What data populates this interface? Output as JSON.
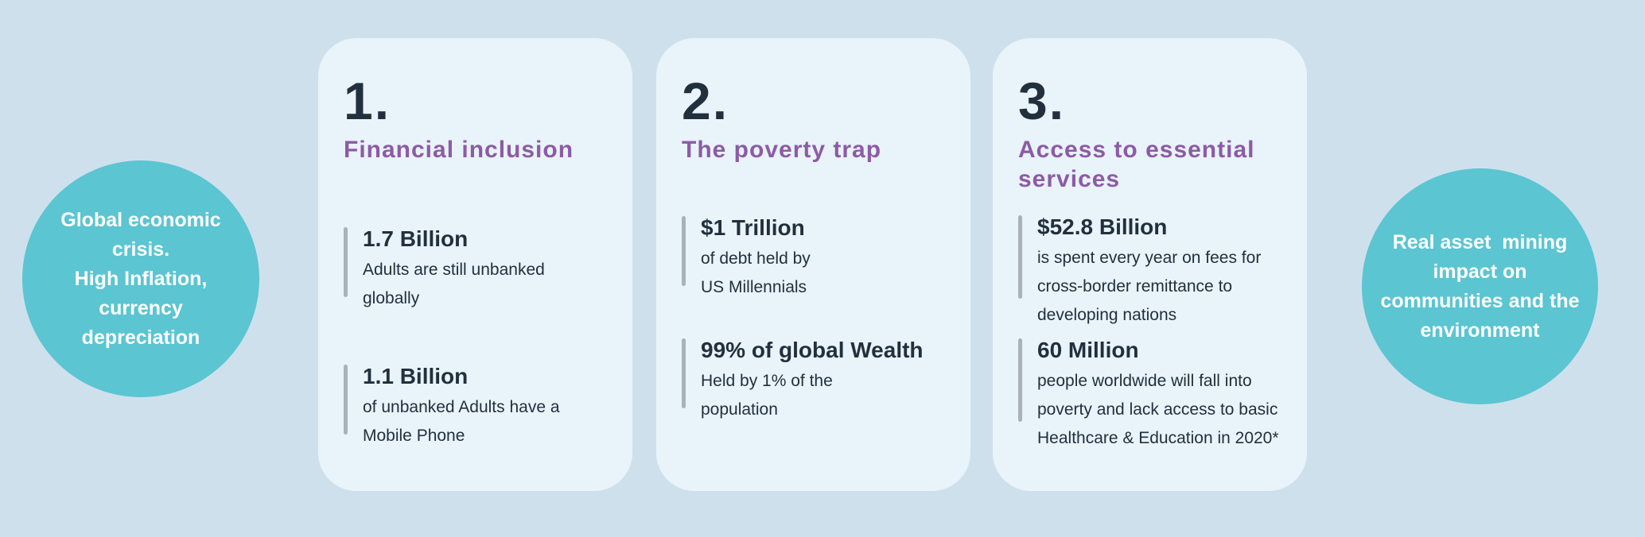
{
  "colors": {
    "background": "#cfe0ed",
    "card_background": "#e9f3fa",
    "bubble_teal": "#5bc5d2",
    "heading_purple": "#8c5ba6",
    "text_dark": "#22303e",
    "stat_bar_gray": "#a9b1b9"
  },
  "left_bubble": {
    "text": "Global economic\ncrisis.\nHigh Inflation,\ncurrency\ndepreciation"
  },
  "right_bubble": {
    "text": "Real asset  mining\nimpact on\ncommunities and the\nenvironment"
  },
  "cards": [
    {
      "number": "1.",
      "title": "Financial inclusion",
      "stats": [
        {
          "value": "1.7 Billion",
          "description": "Adults are still unbanked\nglobally"
        },
        {
          "value": "1.1 Billion",
          "description": "of unbanked Adults have a\nMobile Phone"
        }
      ]
    },
    {
      "number": "2.",
      "title": "The poverty trap",
      "stats": [
        {
          "value": "$1 Trillion",
          "description": "of debt held by\nUS Millennials"
        },
        {
          "value": "99% of global Wealth",
          "description": "Held by 1% of the\npopulation"
        }
      ]
    },
    {
      "number": "3.",
      "title": "Access to essential\nservices",
      "stats": [
        {
          "value": "$52.8 Billion",
          "description": "is spent every year on fees for\ncross-border remittance to\ndeveloping nations"
        },
        {
          "value": "60 Million",
          "description": "people worldwide will fall into\npoverty and lack access to basic\nHealthcare & Education in 2020*"
        }
      ]
    }
  ]
}
